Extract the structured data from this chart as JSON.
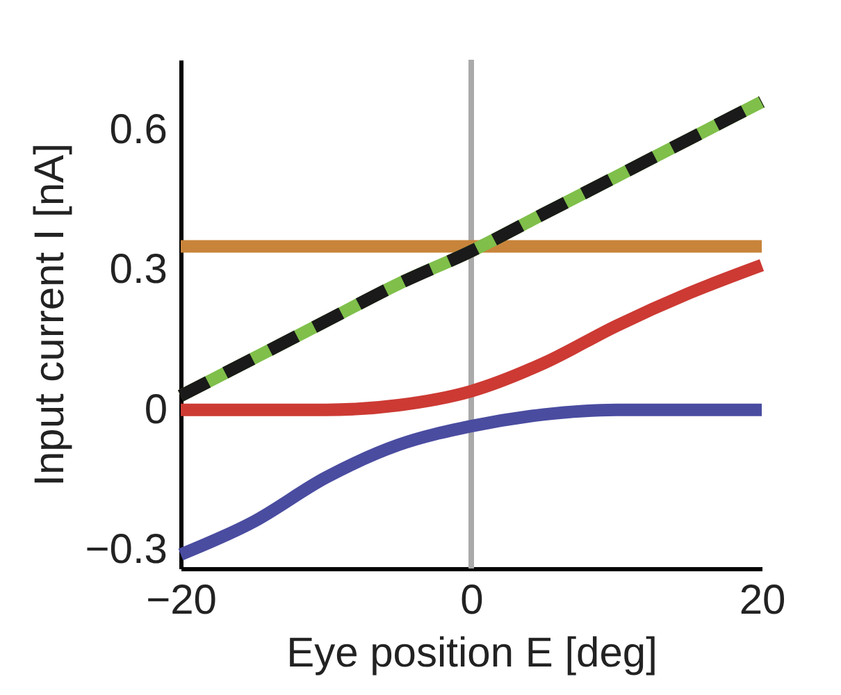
{
  "chart_data": {
    "type": "line",
    "xlabel": "Eye position E [deg]",
    "ylabel": "Input current I [nA]",
    "xlim": [
      -20,
      20
    ],
    "xticks": [
      -20,
      0,
      20
    ],
    "ylim": [
      -0.34,
      0.75
    ],
    "yticks": [
      -0.3,
      0,
      0.3,
      0.6
    ],
    "grid": false,
    "x": [
      -20,
      -15,
      -10,
      -5,
      0,
      5,
      10,
      15,
      20
    ],
    "series": [
      {
        "color": "#c8843a",
        "values": [
          0.35,
          0.35,
          0.35,
          0.35,
          0.35,
          0.35,
          0.35,
          0.35,
          0.35
        ]
      },
      {
        "color": "#7fbf4a",
        "values": [
          0.03,
          0.11,
          0.19,
          0.27,
          0.34,
          0.42,
          0.5,
          0.58,
          0.66
        ]
      },
      {
        "color": "#1a1a1a",
        "line_style": "dashed",
        "values": [
          0.03,
          0.11,
          0.19,
          0.27,
          0.34,
          0.42,
          0.5,
          0.58,
          0.66
        ]
      },
      {
        "color": "#cc3a33",
        "values": [
          0.0,
          0.0,
          0.0,
          0.01,
          0.04,
          0.1,
          0.18,
          0.25,
          0.31
        ]
      },
      {
        "color": "#4a4ca0",
        "values": [
          -0.31,
          -0.24,
          -0.145,
          -0.075,
          -0.035,
          -0.01,
          0.0,
          0.0,
          0.0
        ]
      }
    ],
    "ref_lines": [
      {
        "axis": "x",
        "value": 0,
        "color": "#aaaaaa"
      }
    ]
  }
}
